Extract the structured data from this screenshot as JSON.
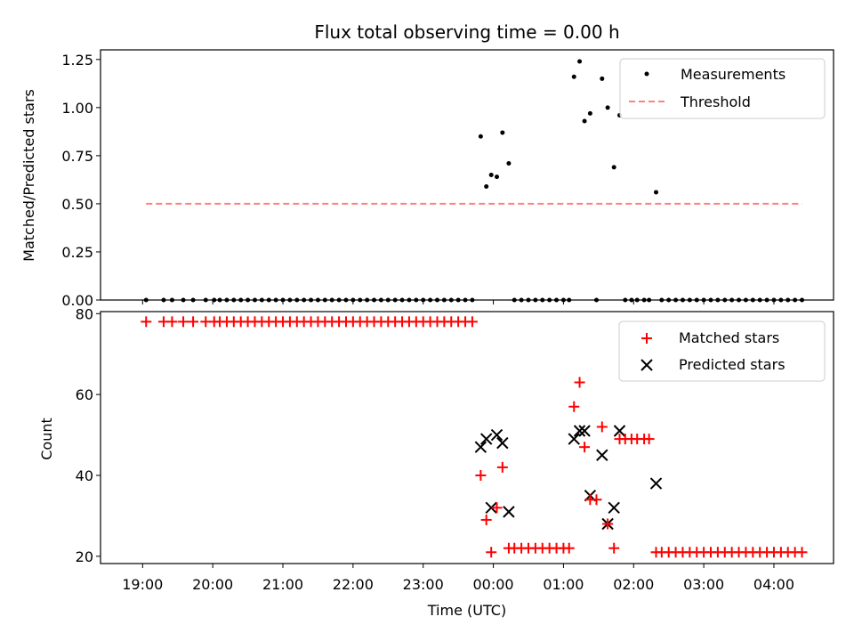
{
  "chart_data": [
    {
      "type": "scatter",
      "title": "Flux total observing time = 0.00 h",
      "xlabel": "",
      "ylabel": "Matched/Predicted stars",
      "ylim": [
        0,
        1.3
      ],
      "yticks": [
        0.0,
        0.25,
        0.5,
        0.75,
        1.0,
        1.25
      ],
      "ytick_labels": [
        "0.00",
        "0.25",
        "0.50",
        "0.75",
        "1.00",
        "1.25"
      ],
      "legend": {
        "placement": "top-right",
        "entries": [
          "Measurements",
          "Threshold"
        ]
      },
      "threshold": {
        "name": "Threshold",
        "value": 0.5,
        "x_start": 19.05,
        "x_end": 28.4,
        "color": "#ff8080"
      },
      "series": [
        {
          "name": "Measurements",
          "color": "#000000",
          "points": [
            [
              19.05,
              0
            ],
            [
              19.3,
              0
            ],
            [
              19.42,
              0
            ],
            [
              19.58,
              0
            ],
            [
              19.72,
              0
            ],
            [
              19.9,
              0
            ],
            [
              20.02,
              0
            ],
            [
              20.1,
              0
            ],
            [
              20.2,
              0
            ],
            [
              20.3,
              0
            ],
            [
              20.4,
              0
            ],
            [
              20.5,
              0
            ],
            [
              20.6,
              0
            ],
            [
              20.7,
              0
            ],
            [
              20.8,
              0
            ],
            [
              20.9,
              0
            ],
            [
              21.0,
              0
            ],
            [
              21.1,
              0
            ],
            [
              21.2,
              0
            ],
            [
              21.3,
              0
            ],
            [
              21.4,
              0
            ],
            [
              21.5,
              0
            ],
            [
              21.6,
              0
            ],
            [
              21.7,
              0
            ],
            [
              21.8,
              0
            ],
            [
              21.9,
              0
            ],
            [
              22.0,
              0
            ],
            [
              22.1,
              0
            ],
            [
              22.2,
              0
            ],
            [
              22.3,
              0
            ],
            [
              22.4,
              0
            ],
            [
              22.5,
              0
            ],
            [
              22.6,
              0
            ],
            [
              22.7,
              0
            ],
            [
              22.8,
              0
            ],
            [
              22.9,
              0
            ],
            [
              23.0,
              0
            ],
            [
              23.1,
              0
            ],
            [
              23.2,
              0
            ],
            [
              23.3,
              0
            ],
            [
              23.4,
              0
            ],
            [
              23.5,
              0
            ],
            [
              23.6,
              0
            ],
            [
              23.7,
              0
            ],
            [
              23.82,
              0.85
            ],
            [
              23.9,
              0.59
            ],
            [
              23.97,
              0.65
            ],
            [
              24.05,
              0.64
            ],
            [
              24.13,
              0.87
            ],
            [
              24.22,
              0.71
            ],
            [
              24.3,
              0
            ],
            [
              24.4,
              0
            ],
            [
              24.5,
              0
            ],
            [
              24.6,
              0
            ],
            [
              24.7,
              0
            ],
            [
              24.8,
              0
            ],
            [
              24.9,
              0
            ],
            [
              25.0,
              0
            ],
            [
              25.08,
              0
            ],
            [
              25.15,
              1.16
            ],
            [
              25.23,
              1.24
            ],
            [
              25.3,
              0.93
            ],
            [
              25.38,
              0.97
            ],
            [
              25.47,
              0
            ],
            [
              25.55,
              1.15
            ],
            [
              25.63,
              1.0
            ],
            [
              25.72,
              0.69
            ],
            [
              25.8,
              0.96
            ],
            [
              25.88,
              0
            ],
            [
              25.97,
              0
            ],
            [
              26.05,
              0
            ],
            [
              26.15,
              0
            ],
            [
              26.22,
              0
            ],
            [
              26.32,
              0.56
            ],
            [
              26.4,
              0
            ],
            [
              26.5,
              0
            ],
            [
              26.6,
              0
            ],
            [
              26.7,
              0
            ],
            [
              26.8,
              0
            ],
            [
              26.9,
              0
            ],
            [
              27.0,
              0
            ],
            [
              27.1,
              0
            ],
            [
              27.2,
              0
            ],
            [
              27.3,
              0
            ],
            [
              27.4,
              0
            ],
            [
              27.5,
              0
            ],
            [
              27.6,
              0
            ],
            [
              27.7,
              0
            ],
            [
              27.8,
              0
            ],
            [
              27.9,
              0
            ],
            [
              28.0,
              0
            ],
            [
              28.1,
              0
            ],
            [
              28.2,
              0
            ],
            [
              28.3,
              0
            ],
            [
              28.4,
              0
            ]
          ]
        }
      ]
    },
    {
      "type": "scatter",
      "title": "",
      "xlabel": "Time (UTC)",
      "ylabel": "Count",
      "ylim": [
        18.2,
        80.5
      ],
      "yticks": [
        20,
        40,
        60,
        80
      ],
      "ytick_labels": [
        "20",
        "40",
        "60",
        "80"
      ],
      "xlim": [
        18.4,
        28.85
      ],
      "xticks": [
        19,
        20,
        21,
        22,
        23,
        24,
        25,
        26,
        27,
        28
      ],
      "xtick_labels": [
        "19:00",
        "20:00",
        "21:00",
        "22:00",
        "23:00",
        "00:00",
        "01:00",
        "02:00",
        "03:00",
        "04:00"
      ],
      "legend": {
        "placement": "top-right",
        "entries": [
          "Matched stars",
          "Predicted stars"
        ]
      },
      "series": [
        {
          "name": "Matched stars",
          "color": "#ff0000",
          "marker": "plus",
          "points": [
            [
              19.05,
              78
            ],
            [
              19.3,
              78
            ],
            [
              19.42,
              78
            ],
            [
              19.58,
              78
            ],
            [
              19.72,
              78
            ],
            [
              19.9,
              78
            ],
            [
              20.02,
              78
            ],
            [
              20.1,
              78
            ],
            [
              20.2,
              78
            ],
            [
              20.3,
              78
            ],
            [
              20.4,
              78
            ],
            [
              20.5,
              78
            ],
            [
              20.6,
              78
            ],
            [
              20.7,
              78
            ],
            [
              20.8,
              78
            ],
            [
              20.9,
              78
            ],
            [
              21.0,
              78
            ],
            [
              21.1,
              78
            ],
            [
              21.2,
              78
            ],
            [
              21.3,
              78
            ],
            [
              21.4,
              78
            ],
            [
              21.5,
              78
            ],
            [
              21.6,
              78
            ],
            [
              21.7,
              78
            ],
            [
              21.8,
              78
            ],
            [
              21.9,
              78
            ],
            [
              22.0,
              78
            ],
            [
              22.1,
              78
            ],
            [
              22.2,
              78
            ],
            [
              22.3,
              78
            ],
            [
              22.4,
              78
            ],
            [
              22.5,
              78
            ],
            [
              22.6,
              78
            ],
            [
              22.7,
              78
            ],
            [
              22.8,
              78
            ],
            [
              22.9,
              78
            ],
            [
              23.0,
              78
            ],
            [
              23.1,
              78
            ],
            [
              23.2,
              78
            ],
            [
              23.3,
              78
            ],
            [
              23.4,
              78
            ],
            [
              23.5,
              78
            ],
            [
              23.6,
              78
            ],
            [
              23.7,
              78
            ],
            [
              23.82,
              40
            ],
            [
              23.9,
              29
            ],
            [
              23.97,
              21
            ],
            [
              24.05,
              32
            ],
            [
              24.13,
              42
            ],
            [
              24.22,
              22
            ],
            [
              24.3,
              22
            ],
            [
              24.4,
              22
            ],
            [
              24.5,
              22
            ],
            [
              24.6,
              22
            ],
            [
              24.7,
              22
            ],
            [
              24.8,
              22
            ],
            [
              24.9,
              22
            ],
            [
              25.0,
              22
            ],
            [
              25.08,
              22
            ],
            [
              25.15,
              57
            ],
            [
              25.23,
              63
            ],
            [
              25.3,
              47
            ],
            [
              25.38,
              34
            ],
            [
              25.47,
              34
            ],
            [
              25.55,
              52
            ],
            [
              25.63,
              28
            ],
            [
              25.72,
              22
            ],
            [
              25.8,
              49
            ],
            [
              25.88,
              49
            ],
            [
              25.97,
              49
            ],
            [
              26.05,
              49
            ],
            [
              26.15,
              49
            ],
            [
              26.22,
              49
            ],
            [
              26.32,
              21
            ],
            [
              26.4,
              21
            ],
            [
              26.5,
              21
            ],
            [
              26.6,
              21
            ],
            [
              26.7,
              21
            ],
            [
              26.8,
              21
            ],
            [
              26.9,
              21
            ],
            [
              27.0,
              21
            ],
            [
              27.1,
              21
            ],
            [
              27.2,
              21
            ],
            [
              27.3,
              21
            ],
            [
              27.4,
              21
            ],
            [
              27.5,
              21
            ],
            [
              27.6,
              21
            ],
            [
              27.7,
              21
            ],
            [
              27.8,
              21
            ],
            [
              27.9,
              21
            ],
            [
              28.0,
              21
            ],
            [
              28.1,
              21
            ],
            [
              28.2,
              21
            ],
            [
              28.3,
              21
            ],
            [
              28.4,
              21
            ]
          ]
        },
        {
          "name": "Predicted stars",
          "color": "#000000",
          "marker": "x",
          "points": [
            [
              23.82,
              47
            ],
            [
              23.9,
              49
            ],
            [
              23.97,
              32
            ],
            [
              24.05,
              50
            ],
            [
              24.13,
              48
            ],
            [
              24.22,
              31
            ],
            [
              25.15,
              49
            ],
            [
              25.23,
              51
            ],
            [
              25.3,
              51
            ],
            [
              25.38,
              35
            ],
            [
              25.55,
              45
            ],
            [
              25.63,
              28
            ],
            [
              25.72,
              32
            ],
            [
              25.8,
              51
            ],
            [
              26.32,
              38
            ]
          ]
        }
      ]
    }
  ]
}
